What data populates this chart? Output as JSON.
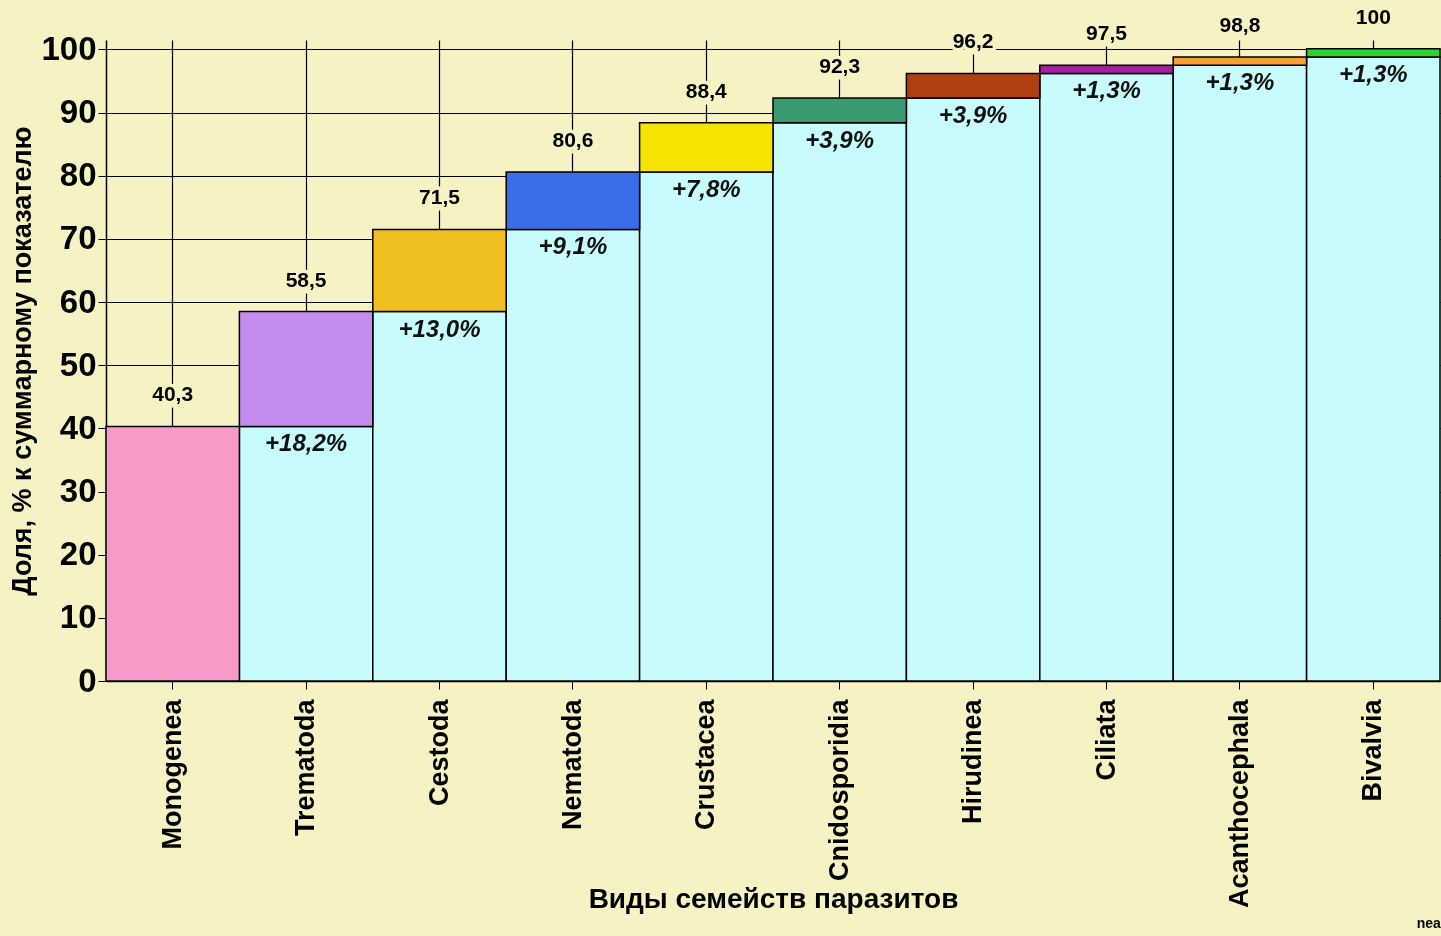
{
  "chart_data": {
    "type": "bar",
    "stacked": true,
    "xlabel": "Виды семейств паразитов",
    "ylabel": "Доля, % к суммарному показателю",
    "categories": [
      "Monogenea",
      "Trematoda",
      "Cestoda",
      "Nematoda",
      "Crustacea",
      "Cnidosporidia",
      "Hirudinea",
      "Ciliata",
      "Acanthocephala",
      "Bivalvia"
    ],
    "series": [
      {
        "color": "#c8fcfc",
        "values": [
          0,
          40.3,
          58.5,
          71.5,
          80.6,
          88.4,
          92.3,
          96.2,
          97.5,
          98.8
        ]
      },
      {
        "colors": [
          "#f79ac8",
          "#c58cf0",
          "#f0c020",
          "#3a6ee8",
          "#f5e400",
          "#3a9a70",
          "#b04010",
          "#a020a0",
          "#f5a030",
          "#30d030"
        ],
        "values": [
          40.3,
          18.2,
          13.0,
          9.1,
          7.8,
          3.9,
          3.9,
          1.3,
          1.3,
          1.3
        ],
        "value_labels": [
          null,
          "+18,2%",
          "+13,0%",
          "+9,1%",
          "+7,8%",
          "+3,9%",
          "+3,9%",
          "+1,3%",
          "+1,3%",
          "+1,3%"
        ]
      }
    ],
    "totals": [
      "40,3",
      "58,5",
      "71,5",
      "80,6",
      "88,4",
      "92,3",
      "96,2",
      "97,5",
      "98,8",
      "100"
    ],
    "annotations": [
      "nea"
    ],
    "ylim": [
      0,
      101.5
    ],
    "yticks": [
      0,
      10,
      20,
      30,
      40,
      50,
      60,
      70,
      80,
      90,
      100
    ],
    "grid": true
  }
}
